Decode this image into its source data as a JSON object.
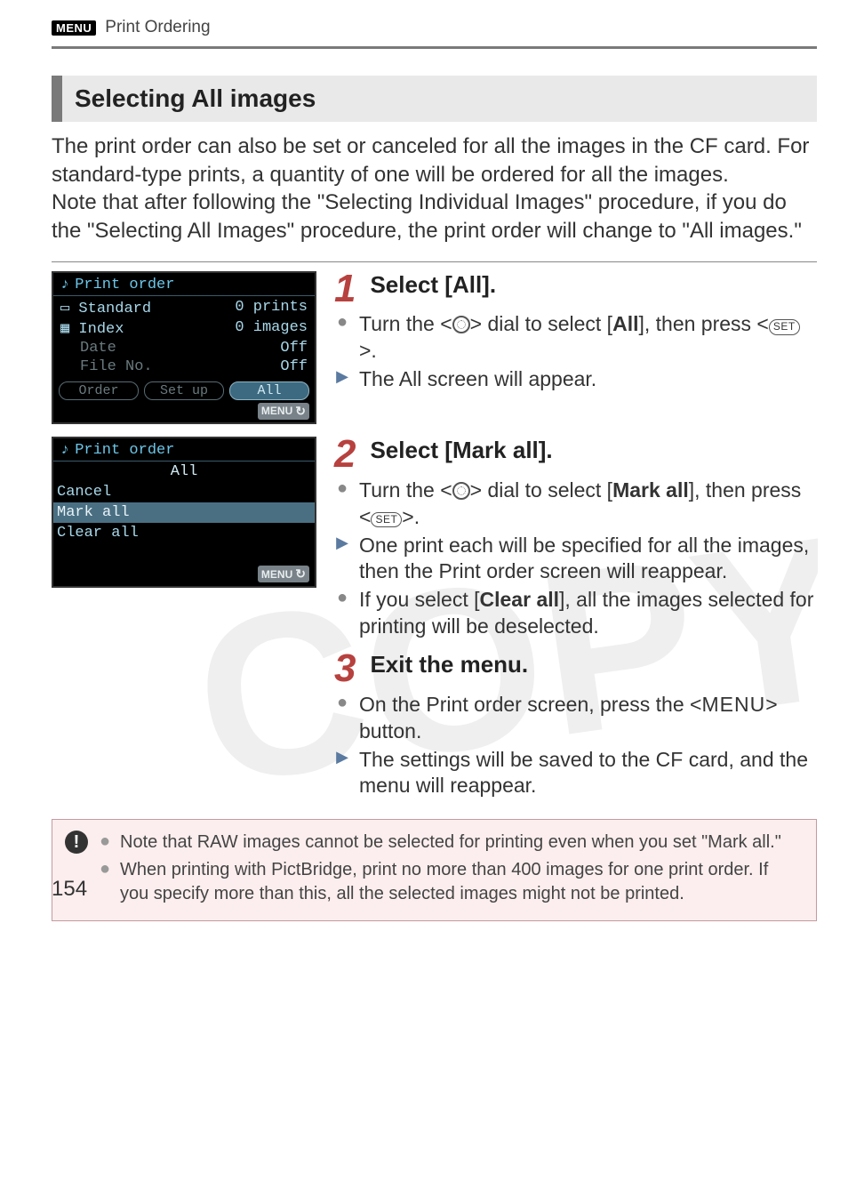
{
  "header": {
    "badge": "MENU",
    "title": "Print Ordering"
  },
  "section_heading": "Selecting All images",
  "intro_p1": "The print order can also be set or canceled for all the images in the CF card. For standard-type prints, a quantity of one will be ordered for all the images.",
  "intro_p2": "Note that after following the \"Selecting Individual Images\" procedure, if you do the \"Selecting All Images\" procedure, the print order will change to \"All images.\"",
  "lcd1": {
    "title": "Print order",
    "rows": [
      {
        "label": "Standard",
        "value": "0 prints"
      },
      {
        "label": "Index",
        "value": "0 images"
      },
      {
        "label": "Date",
        "value": "Off"
      },
      {
        "label": "File No.",
        "value": "Off"
      }
    ],
    "buttons": [
      "Order",
      "Set up",
      "All"
    ],
    "highlight_idx": 2,
    "footer": "MENU"
  },
  "lcd2": {
    "title": "Print order",
    "subtitle": "All",
    "items": [
      "Cancel",
      "Mark all",
      "Clear all"
    ],
    "selected_idx": 1,
    "footer": "MENU"
  },
  "steps": [
    {
      "num": "1",
      "heading": "Select [All].",
      "bullets": [
        {
          "type": "dot",
          "html": "Turn the <__DIAL__> dial to select [<b>All</b>], then press <__SET__>."
        },
        {
          "type": "tri",
          "html": "The All screen will appear."
        }
      ]
    },
    {
      "num": "2",
      "heading": "Select [Mark all].",
      "bullets": [
        {
          "type": "dot",
          "html": "Turn the <__DIAL__> dial to select [<b>Mark all</b>], then press <__SET__>."
        },
        {
          "type": "tri",
          "html": "One print each will be specified for all the images, then the Print order screen will reappear."
        },
        {
          "type": "dot",
          "html": "If you select [<b>Clear all</b>], all the images selected for printing will be deselected."
        }
      ]
    },
    {
      "num": "3",
      "heading": "Exit the menu.",
      "bullets": [
        {
          "type": "dot",
          "html": "On the Print order screen, press the <<span class='menu-word'>MENU</span>> button."
        },
        {
          "type": "tri",
          "html": "The settings will be saved to the CF card, and the menu will reappear."
        }
      ]
    }
  ],
  "warnings": [
    "Note that RAW images cannot be selected for printing even when you set \"Mark all.\"",
    "When printing with PictBridge, print no more than 400 images for one print order. If you specify more than this, all the selected images might not be printed."
  ],
  "page_number": "154",
  "colors": {
    "accent_red": "#b7413e",
    "heading_bar": "#7a7a7a",
    "heading_bg": "#e9e9e9",
    "lcd_cyan": "#a8d8ea",
    "warn_bg": "#fceeee",
    "warn_border": "#c59aa0"
  }
}
